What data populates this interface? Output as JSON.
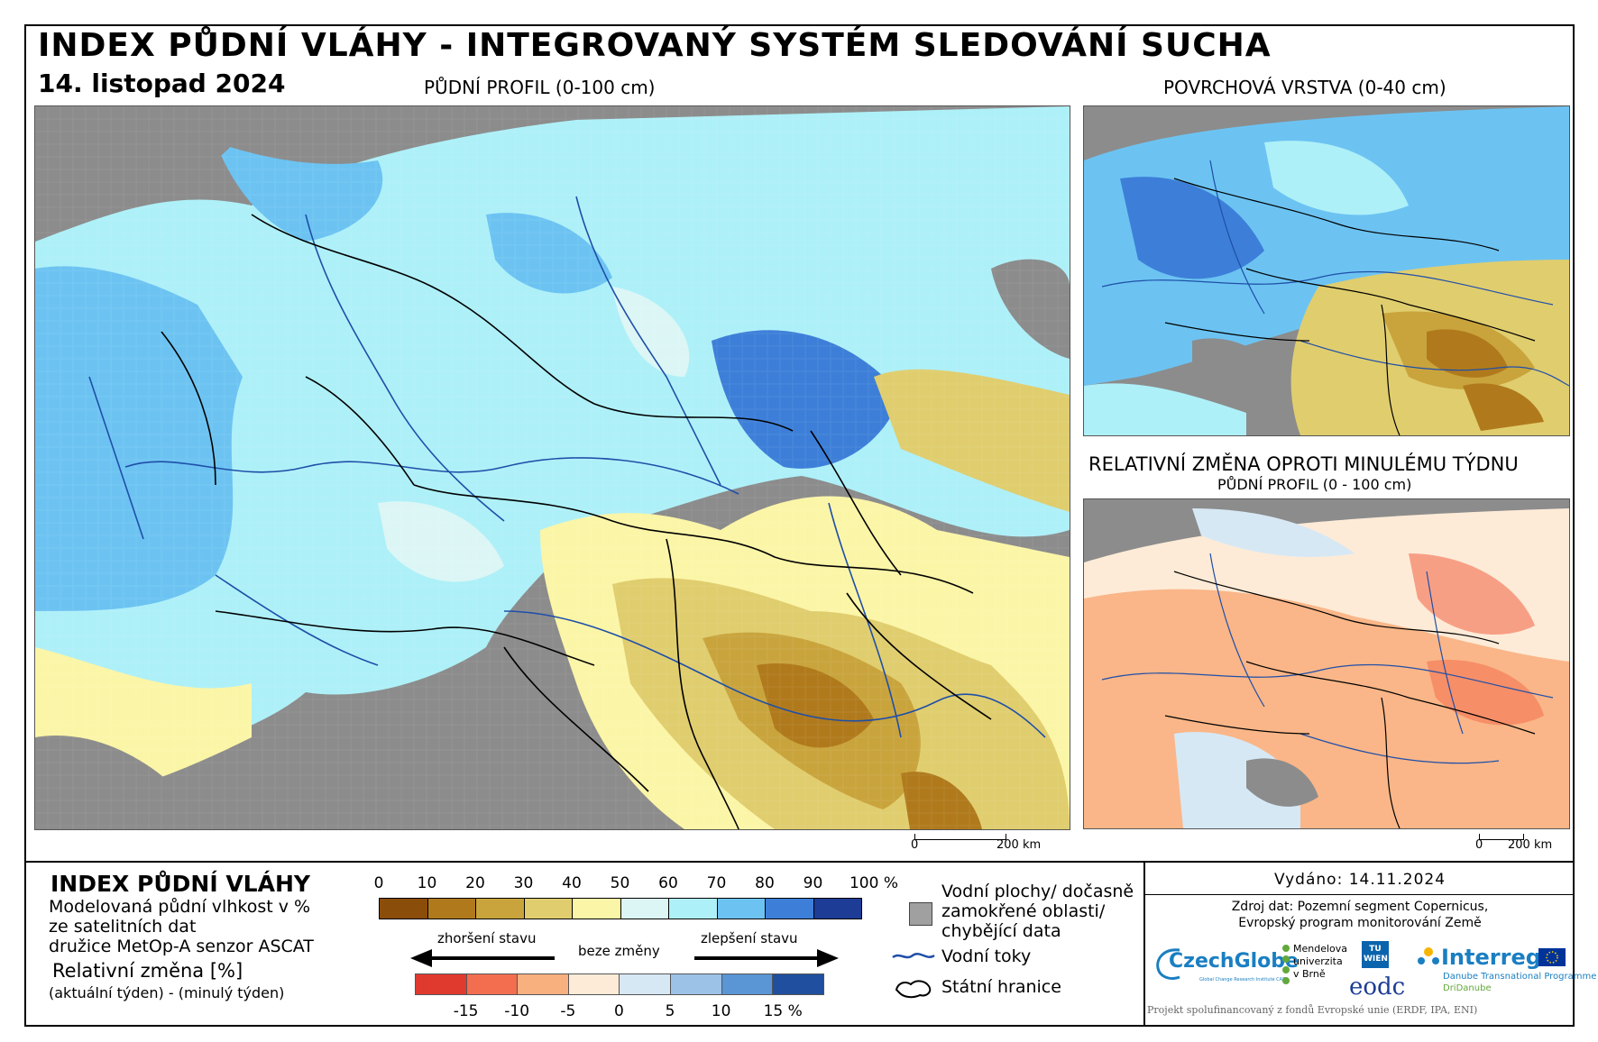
{
  "header": {
    "title": "INDEX PŮDNÍ VLÁHY - INTEGROVANÝ SYSTÉM SLEDOVÁNÍ SUCHA",
    "date": "14. listopad 2024"
  },
  "maps": {
    "main_caption": "PŮDNÍ PROFIL (0-100 cm)",
    "surface_caption": "POVRCHOVÁ VRSTVA (0-40 cm)",
    "change_caption": "RELATIVNÍ ZMĚNA OPROTI MINULÉMU TÝDNU",
    "change_subcaption": "PŮDNÍ PROFIL (0 - 100 cm)",
    "scale_zero": "0",
    "scale_main": "200 km",
    "scale_small": "200 km"
  },
  "legend": {
    "title": "INDEX PŮDNÍ VLÁHY",
    "desc1": "Modelovaná půdní vlhkost v %",
    "desc2": "ze satelitních dat",
    "desc3": "družice MetOp-A senzor ASCAT",
    "rel_title": "Relativní změna [%]",
    "rel_desc": "(aktuální týden) - (minulý týden)",
    "index_ticks": [
      "0",
      "10",
      "20",
      "30",
      "40",
      "50",
      "60",
      "70",
      "80",
      "90",
      "100 %"
    ],
    "index_colors": [
      "#8b4d0a",
      "#b07a1c",
      "#c9a43d",
      "#e0cd6e",
      "#fbf5a7",
      "#dcf6f5",
      "#aef0f8",
      "#6cc3f2",
      "#3d7fd8",
      "#1c3c95"
    ],
    "change_ticks": [
      "-15",
      "-10",
      "-5",
      "0",
      "5",
      "10",
      "15 %"
    ],
    "change_colors": [
      "#e03a2f",
      "#f36d4f",
      "#f9b07f",
      "#fdebd7",
      "#d7e8f5",
      "#9cc2e8",
      "#5a95d6",
      "#1f4f9e"
    ],
    "worse": "zhoršení stavu",
    "nochange": "beze změny",
    "better": "zlepšení stavu",
    "key_water_bodies": "Vodní plochy/ dočasně zamokřené oblasti/ chybějící data",
    "key_rivers": "Vodní toky",
    "key_borders": "Státní hranice"
  },
  "info": {
    "issued": "Vydáno: 14.11.2024",
    "source1": "Zdroj dat: Pozemní segment Copernicus,",
    "source2": "Evropský program monitorování Země",
    "footer": "Projekt spolufinancovaný z fondů Evropské unie (ERDF, IPA, ENI)"
  },
  "logos": {
    "czechglobe": "CzechGlobe",
    "czechglobe_sub": "Global Change Research Institute CAS",
    "mendel": "Mendelova univerzita v Brně",
    "tu": "TU WIEN",
    "eodc": "eodc",
    "interreg": "Interreg",
    "interreg_sub1": "Danube Transnational Programme",
    "interreg_sub2": "DriDanube"
  },
  "colors": {
    "nodata_gray": "#8c8c8c",
    "river_blue": "#1f4fa8"
  }
}
